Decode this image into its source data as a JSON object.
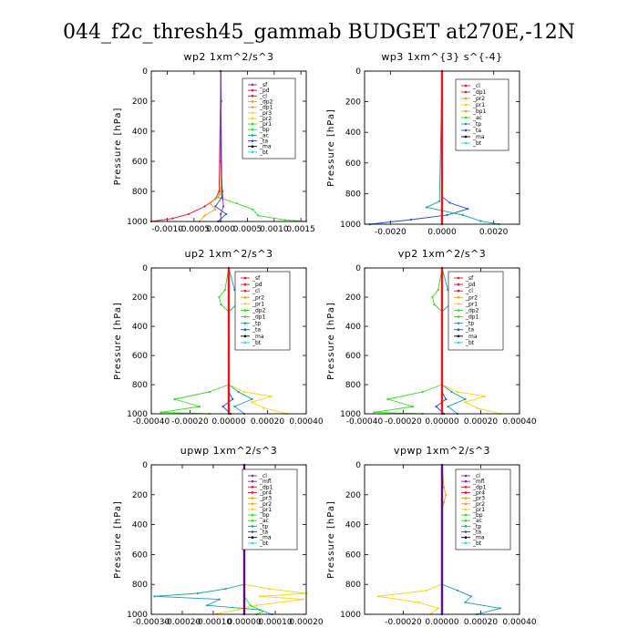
{
  "figure_title": "044_f2c_thresh45_gammab  BUDGET at270E,-12N",
  "colors": {
    "purple": "#7b2fa0",
    "red": "#e0162b",
    "orange": "#f0a020",
    "yellow": "#f2d21c",
    "green": "#39d62a",
    "teal": "#1e9aa6",
    "blue": "#1f4fd0",
    "navy": "#1a1a9a",
    "black": "#000000",
    "cyan": "#33d6e0",
    "bright_red": "#e8141e",
    "dark_purple": "#5a1080"
  },
  "chart_data": [
    {
      "type": "line",
      "title": "wp2   1xm^2/s^3",
      "ylabel": "Pressure [hPa]",
      "xlim": [
        -0.0013,
        0.0016
      ],
      "ylim": [
        1000,
        0
      ],
      "xticks": [
        "-0.0010",
        "-0.0005",
        "0.0000",
        "0.0005",
        "0.0010",
        "0.0015"
      ],
      "xtick_values": [
        -0.001,
        -0.0005,
        0,
        0.0005,
        0.001,
        0.0015
      ],
      "yticks": [
        0,
        200,
        400,
        600,
        800,
        1000
      ],
      "legend": [
        "_sf",
        "_pd",
        "_cl",
        "_dp2",
        "_dp1",
        "_pr3",
        "_pr2",
        "_pr1",
        "_bp",
        "_ac",
        "_ta",
        "_ma",
        "_bt"
      ],
      "legend_colors": [
        "purple",
        "red",
        "red",
        "orange",
        "orange",
        "yellow",
        "yellow",
        "green",
        "green",
        "teal",
        "blue",
        "black",
        "cyan"
      ],
      "series": [
        {
          "color": "green",
          "pressure": [
            0,
            780,
            840,
            880,
            920,
            960,
            990,
            1000
          ],
          "values": [
            0,
            0,
            -5e-05,
            0.0003,
            0.0006,
            0.0007,
            0.0012,
            0.0016
          ]
        },
        {
          "color": "red",
          "pressure": [
            0,
            800,
            850,
            900,
            950,
            980,
            1000
          ],
          "values": [
            0,
            -3e-05,
            -0.0001,
            -0.0003,
            -0.0006,
            -0.0009,
            -0.0013
          ]
        },
        {
          "color": "orange",
          "pressure": [
            0,
            820,
            880,
            920,
            960,
            1000
          ],
          "values": [
            0,
            0,
            -0.0002,
            -0.0001,
            -0.0003,
            -0.0004
          ]
        },
        {
          "color": "blue",
          "pressure": [
            0,
            840,
            900,
            950,
            1000
          ],
          "values": [
            0,
            2e-05,
            -0.0001,
            0.0001,
            -5e-05
          ]
        },
        {
          "color": "purple",
          "pressure": [
            0,
            200,
            400,
            600,
            800,
            900,
            950,
            1000
          ],
          "values": [
            0,
            1e-05,
            0,
            0,
            3e-05,
            5e-05,
            0,
            0
          ]
        }
      ]
    },
    {
      "type": "line",
      "title": "wp3   1xm^{3} s^{-4}",
      "ylabel": "Pressure [hPa]",
      "xlim": [
        -0.003,
        0.003
      ],
      "ylim": [
        1000,
        0
      ],
      "xticks": [
        "-0.0020",
        "0.0000",
        "0.0020"
      ],
      "xtick_values": [
        -0.002,
        0,
        0.002
      ],
      "yticks": [
        0,
        200,
        400,
        600,
        800,
        1000
      ],
      "legend": [
        "_cl",
        "_dp1",
        "_pr2",
        "_pr1",
        "_bp1",
        "_ac",
        "_tp",
        "_ta",
        "_ma",
        "_bt"
      ],
      "legend_colors": [
        "red",
        "red",
        "orange",
        "yellow",
        "orange",
        "green",
        "teal",
        "blue",
        "black",
        "cyan"
      ],
      "series": [
        {
          "color": "blue",
          "pressure": [
            0,
            820,
            860,
            900,
            940,
            970,
            1000
          ],
          "values": [
            0,
            0,
            0.0003,
            0.001,
            0.0002,
            -0.0012,
            -0.0028
          ]
        },
        {
          "color": "teal",
          "pressure": [
            0,
            850,
            890,
            940,
            980,
            1000
          ],
          "values": [
            0,
            -0.0001,
            -0.0006,
            0.0008,
            0.0015,
            0.0022
          ]
        },
        {
          "color": "bright_red",
          "pressure": [
            0,
            200,
            400,
            600,
            800,
            1000
          ],
          "values": [
            0,
            0,
            0,
            0,
            0,
            0
          ]
        }
      ]
    },
    {
      "type": "line",
      "title": "up2   1xm^2/s^3",
      "ylabel": "Pressure [hPa]",
      "xlim": [
        -0.0004,
        0.0004
      ],
      "ylim": [
        1000,
        0
      ],
      "xticks": [
        "-0.00040",
        "-0.00020",
        "0.00000",
        "0.00020",
        "0.00040"
      ],
      "xtick_values": [
        -0.0004,
        -0.0002,
        0,
        0.0002,
        0.0004
      ],
      "yticks": [
        0,
        200,
        400,
        600,
        800,
        1000
      ],
      "legend": [
        "_sf",
        "_pd",
        "_cl",
        "_pr2",
        "_pr1",
        "_dp2",
        "_dp1",
        "_tp",
        "_ta",
        "_ma",
        "_bt"
      ],
      "legend_colors": [
        "red",
        "red",
        "red",
        "orange",
        "yellow",
        "green",
        "green",
        "teal",
        "blue",
        "black",
        "cyan"
      ],
      "series": [
        {
          "color": "green",
          "pressure": [
            0,
            150,
            200,
            250,
            300,
            800,
            850,
            900,
            950,
            990,
            1000
          ],
          "values": [
            0,
            -2e-05,
            -5e-05,
            -4e-05,
            0,
            0,
            -0.0001,
            -0.00028,
            -0.00015,
            -0.00035,
            -0.0001
          ]
        },
        {
          "color": "teal",
          "pressure": [
            0,
            150,
            200,
            250,
            300,
            800,
            850,
            900,
            950,
            1000
          ],
          "values": [
            0,
            3e-05,
            6e-05,
            4e-05,
            0,
            0,
            5e-05,
            0.00012,
            3e-05,
            8e-05
          ]
        },
        {
          "color": "yellow",
          "pressure": [
            0,
            800,
            850,
            880,
            920,
            960,
            1000
          ],
          "values": [
            0,
            0,
            8e-05,
            0.00022,
            0.00012,
            0.00018,
            0.0003
          ]
        },
        {
          "color": "blue",
          "pressure": [
            0,
            850,
            900,
            950,
            1000
          ],
          "values": [
            0,
            0,
            2e-05,
            -3e-05,
            1e-05
          ]
        },
        {
          "color": "bright_red",
          "pressure": [
            0,
            200,
            400,
            600,
            800,
            1000
          ],
          "values": [
            0,
            0,
            0,
            0,
            0,
            0
          ]
        }
      ]
    },
    {
      "type": "line",
      "title": "vp2   1xm^2/s^3",
      "ylabel": "Pressure [hPa]",
      "xlim": [
        -0.0004,
        0.0004
      ],
      "ylim": [
        1000,
        0
      ],
      "xticks": [
        "-0.00040",
        "-0.00020",
        "0.00000",
        "0.00020",
        "0.00040"
      ],
      "xtick_values": [
        -0.0004,
        -0.0002,
        0,
        0.0002,
        0.0004
      ],
      "yticks": [
        0,
        200,
        400,
        600,
        800,
        1000
      ],
      "legend": [
        "_sf",
        "_pd",
        "_cl",
        "_pr2",
        "_pr1",
        "_dp2",
        "_dp1",
        "_tp",
        "_ta",
        "_ma",
        "_bt"
      ],
      "legend_colors": [
        "red",
        "red",
        "red",
        "orange",
        "yellow",
        "green",
        "green",
        "teal",
        "blue",
        "black",
        "cyan"
      ],
      "series": [
        {
          "color": "green",
          "pressure": [
            0,
            150,
            200,
            250,
            300,
            800,
            850,
            900,
            950,
            990,
            1000
          ],
          "values": [
            0,
            -2e-05,
            -5e-05,
            -4e-05,
            0,
            0,
            -0.0001,
            -0.00028,
            -0.00015,
            -0.00035,
            -0.0001
          ]
        },
        {
          "color": "teal",
          "pressure": [
            0,
            150,
            200,
            250,
            300,
            800,
            850,
            900,
            950,
            1000
          ],
          "values": [
            0,
            3e-05,
            6e-05,
            4e-05,
            0,
            0,
            5e-05,
            0.00012,
            3e-05,
            8e-05
          ]
        },
        {
          "color": "yellow",
          "pressure": [
            0,
            800,
            850,
            880,
            920,
            960,
            1000
          ],
          "values": [
            0,
            0,
            8e-05,
            0.00022,
            0.00012,
            0.00018,
            0.0003
          ]
        },
        {
          "color": "blue",
          "pressure": [
            0,
            850,
            900,
            950,
            1000
          ],
          "values": [
            0,
            0,
            2e-05,
            -3e-05,
            1e-05
          ]
        },
        {
          "color": "bright_red",
          "pressure": [
            0,
            200,
            400,
            600,
            800,
            1000
          ],
          "values": [
            0,
            0,
            0,
            0,
            0,
            0
          ]
        }
      ]
    },
    {
      "type": "line",
      "title": "upwp   1xm^2/s^3",
      "ylabel": "Pressure [hPa]",
      "xlim": [
        -0.0003,
        0.0002
      ],
      "ylim": [
        1000,
        0
      ],
      "xticks": [
        "-0.00030",
        "-0.00020",
        "-0.00010",
        "0.00000",
        "0.00010",
        "0.00020"
      ],
      "xtick_values": [
        -0.0003,
        -0.0002,
        -0.0001,
        0,
        0.0001,
        0.0002
      ],
      "yticks": [
        0,
        200,
        400,
        600,
        800,
        1000
      ],
      "legend": [
        "_cl",
        "_mfl",
        "_dp1",
        "_pr4",
        "_pr3",
        "_pr2",
        "_pr1",
        "_bp",
        "_ac",
        "_tp",
        "_ta",
        "_ma",
        "_bt"
      ],
      "legend_colors": [
        "purple",
        "purple",
        "red",
        "red",
        "orange",
        "orange",
        "yellow",
        "green",
        "green",
        "teal",
        "blue",
        "black",
        "cyan"
      ],
      "series": [
        {
          "color": "yellow",
          "pressure": [
            0,
            800,
            830,
            860,
            880,
            900,
            940,
            970,
            1000
          ],
          "values": [
            0,
            0,
            8e-05,
            0.0002,
            5e-05,
            0.00019,
            4e-05,
            -2e-05,
            -0.0001
          ]
        },
        {
          "color": "teal",
          "pressure": [
            0,
            800,
            830,
            860,
            880,
            900,
            940,
            970,
            1000
          ],
          "values": [
            0,
            0,
            -6e-05,
            -0.00015,
            -0.00029,
            -8e-05,
            -0.00012,
            5e-05,
            9e-05
          ]
        },
        {
          "color": "green",
          "pressure": [
            0,
            880,
            940,
            980,
            1000
          ],
          "values": [
            0,
            0,
            2e-05,
            6e-05,
            4e-05
          ]
        },
        {
          "color": "dark_purple",
          "pressure": [
            0,
            200,
            400,
            600,
            800,
            1000
          ],
          "values": [
            0,
            0,
            0,
            0,
            0,
            0
          ]
        }
      ]
    },
    {
      "type": "line",
      "title": "vpwp   1xm^2/s^3",
      "ylabel": "Pressure [hPa]",
      "xlim": [
        -0.0004,
        0.0004
      ],
      "ylim": [
        1000,
        0
      ],
      "xticks": [
        "-0.00020",
        "0.00000",
        "0.00020",
        "0.00040"
      ],
      "xtick_values": [
        -0.0002,
        0,
        0.0002,
        0.0004
      ],
      "yticks": [
        0,
        200,
        400,
        600,
        800,
        1000
      ],
      "legend": [
        "_cl",
        "_mfl",
        "_dp1",
        "_pr4",
        "_pr3",
        "_pr2",
        "_pr1",
        "_bp",
        "_ac",
        "_tp",
        "_ta",
        "_ma",
        "_bt"
      ],
      "legend_colors": [
        "purple",
        "purple",
        "red",
        "red",
        "orange",
        "orange",
        "yellow",
        "green",
        "green",
        "teal",
        "blue",
        "black",
        "cyan"
      ],
      "series": [
        {
          "color": "orange",
          "pressure": [
            0,
            150,
            200,
            250,
            300
          ],
          "values": [
            0,
            1e-05,
            2e-05,
            1e-05,
            0
          ]
        },
        {
          "color": "yellow",
          "pressure": [
            0,
            800,
            840,
            880,
            920,
            960,
            1000
          ],
          "values": [
            0,
            0,
            -8e-05,
            -0.00033,
            -0.00012,
            -2e-05,
            -6e-05
          ]
        },
        {
          "color": "teal",
          "pressure": [
            0,
            800,
            840,
            880,
            920,
            960,
            1000
          ],
          "values": [
            0,
            0,
            8e-05,
            0.00015,
            0.00012,
            0.0003,
            0.00018
          ]
        },
        {
          "color": "dark_purple",
          "pressure": [
            0,
            200,
            400,
            600,
            800,
            1000
          ],
          "values": [
            0,
            0,
            0,
            0,
            0,
            0
          ]
        }
      ]
    }
  ]
}
